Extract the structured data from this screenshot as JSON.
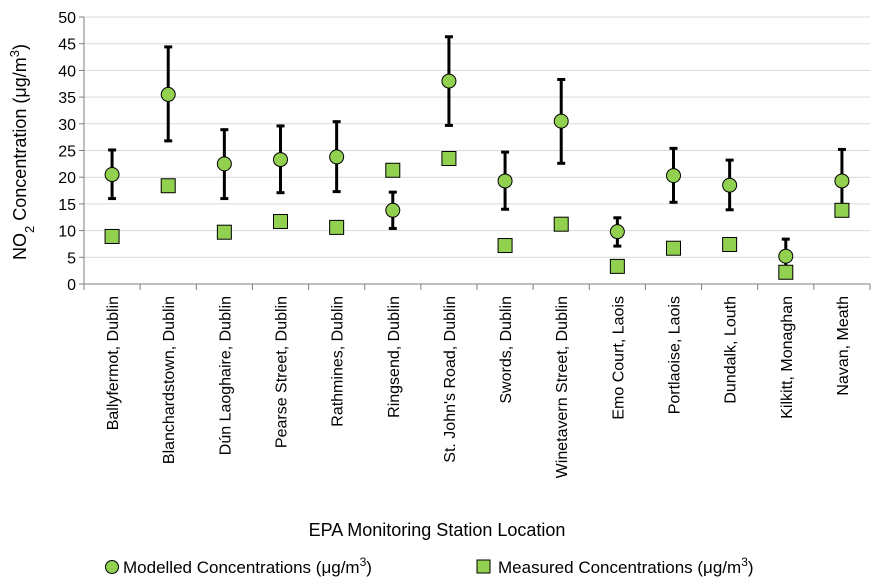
{
  "chart_data": {
    "type": "scatter",
    "xlabel": "EPA Monitoring Station Location",
    "ylabel": {
      "base": "NO",
      "sub": "2",
      "rest": " Concentration (μg/m",
      "sup": "3",
      "close": ")"
    },
    "ylim": [
      0,
      50
    ],
    "yticks": [
      "0",
      "5",
      "10",
      "15",
      "20",
      "25",
      "30",
      "35",
      "40",
      "45",
      "50"
    ],
    "grid": true,
    "legend_position": "bottom",
    "categories": [
      "Ballyfermot, Dublin",
      "Blanchardstown, Dublin",
      "Dún Laoghaire, Dublin",
      "Pearse Street, Dublin",
      "Rathmines, Dublin",
      "Ringsend, Dublin",
      "St. John's Road, Dublin",
      "Swords, Dublin",
      "Winetavern Street, Dublin",
      "Emo Court, Laois",
      "Portlaoise, Laois",
      "Dundalk, Louth",
      "Kilkitt, Monaghan",
      "Navan, Meath"
    ],
    "series": [
      {
        "name": "Modelled Concentrations (μg/m3)",
        "legend_text": "Modelled Concentrations (μg/m",
        "legend_sup": "3",
        "legend_close": ")",
        "marker": "circle",
        "color": "#92D050",
        "values": [
          20.5,
          35.5,
          22.5,
          23.3,
          23.8,
          13.8,
          38,
          19.3,
          30.5,
          9.8,
          20.3,
          18.5,
          5.2,
          19.3
        ],
        "error_low": [
          16,
          26.8,
          16,
          17.1,
          17.3,
          10.4,
          29.7,
          14,
          22.6,
          7.1,
          15.3,
          13.9,
          2.6,
          13.6
        ],
        "error_high": [
          25.1,
          44.4,
          28.9,
          29.6,
          30.4,
          17.2,
          46.3,
          24.7,
          38.3,
          12.4,
          25.4,
          23.2,
          8.4,
          25.2
        ]
      },
      {
        "name": "Measured Concentrations (μg/m3)",
        "legend_text": "Measured Concentrations (μg/m",
        "legend_sup": "3",
        "legend_close": ")",
        "marker": "square",
        "color": "#92D050",
        "values": [
          8.9,
          18.4,
          9.7,
          11.7,
          10.6,
          21.3,
          23.5,
          7.2,
          11.2,
          3.3,
          6.7,
          7.4,
          2.2,
          13.8
        ]
      }
    ]
  }
}
